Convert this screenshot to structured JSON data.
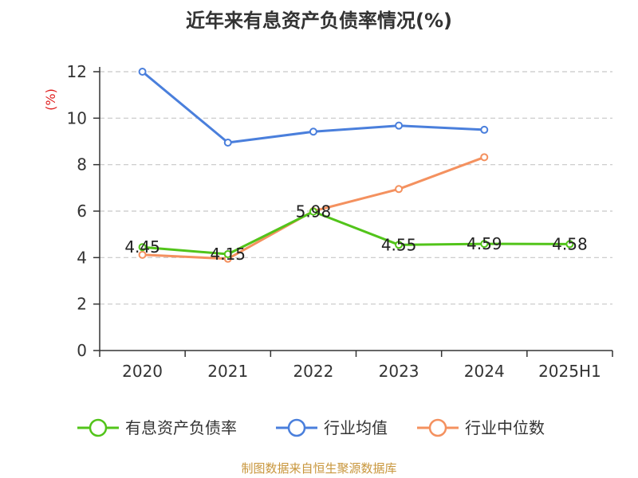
{
  "chart_data": {
    "type": "line",
    "title": "近年来有息资产负债率情况(%)",
    "ylabel": "(%)",
    "xlabel": "",
    "categories": [
      "2020",
      "2021",
      "2022",
      "2023",
      "2024",
      "2025H1"
    ],
    "ylim": [
      0,
      12
    ],
    "yticks": [
      0,
      2,
      4,
      6,
      8,
      10,
      12
    ],
    "grid": true,
    "legend_position": "bottom",
    "series": [
      {
        "name": "有息资产负债率",
        "color": "#52c41a",
        "values": [
          4.45,
          4.15,
          5.98,
          4.55,
          4.59,
          4.58
        ],
        "data_labels": [
          "4.45",
          "4.15",
          "5.98",
          "4.55",
          "4.59",
          "4.58"
        ]
      },
      {
        "name": "行业均值",
        "color": "#4a7fdc",
        "values": [
          12.0,
          8.95,
          9.42,
          9.68,
          9.5,
          null
        ]
      },
      {
        "name": "行业中位数",
        "color": "#f4915f",
        "values": [
          4.12,
          3.95,
          6.0,
          6.95,
          8.32,
          null
        ]
      }
    ],
    "ylabel_color": "#e02020"
  },
  "source": {
    "text": "制图数据来自恒生聚源数据库",
    "color": "#c8963c"
  }
}
